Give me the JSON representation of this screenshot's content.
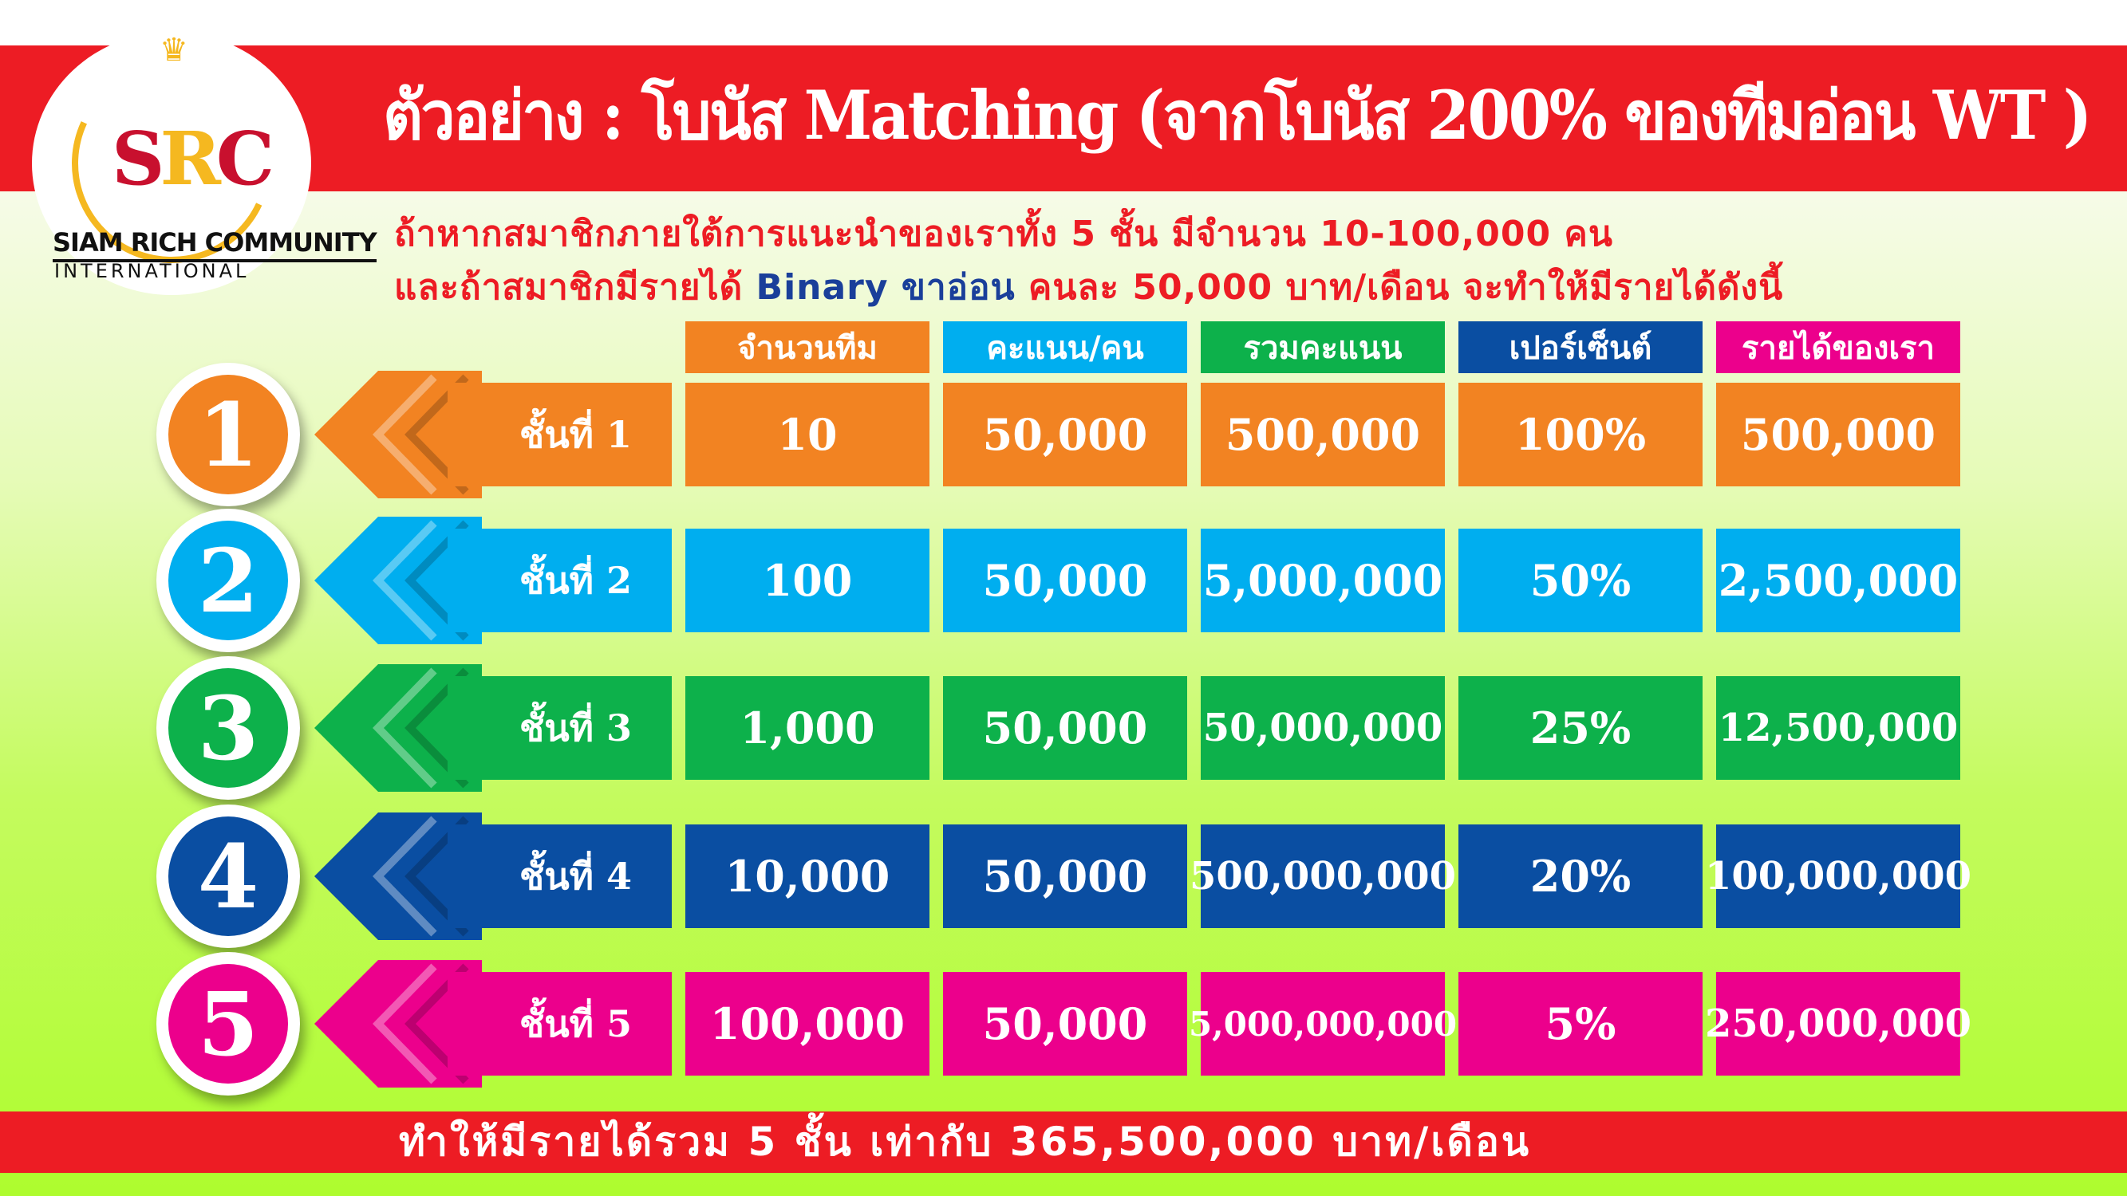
{
  "title": "ตัวอย่าง : โบนัส Matching (จากโบนัส 200% ของทีมอ่อน WT )",
  "logo": {
    "text": "SRC",
    "brand": "SIAM RICH COMMUNITY",
    "brand_sub": "INTERNATIONAL"
  },
  "subtitle1": "ถ้าหากสมาชิกภายใต้การแนะนำของเราทั้ง 5 ชั้น มีจำนวน 10-100,000 คน",
  "subtitle2": {
    "a": "และถ้าสมาชิกมีรายได้ ",
    "b": "Binary ขาอ่อน",
    "c": " คนละ 50,000 บาท/เดือน จะทำให้มีรายได้ดังนี้"
  },
  "headers": [
    "จำนวนทีม",
    "คะแนน/คน",
    "รวมคะแนน",
    "เปอร์เซ็นต์",
    "รายได้ของเรา"
  ],
  "rows": [
    {
      "num": "1",
      "label": "ชั้นที่ 1",
      "color": "#f28322",
      "values": [
        "10",
        "50,000",
        "500,000",
        "100%",
        "500,000"
      ]
    },
    {
      "num": "2",
      "label": "ชั้นที่ 2",
      "color": "#00aeef",
      "values": [
        "100",
        "50,000",
        "5,000,000",
        "50%",
        "2,500,000"
      ]
    },
    {
      "num": "3",
      "label": "ชั้นที่ 3",
      "color": "#0db14b",
      "values": [
        "1,000",
        "50,000",
        "50,000,000",
        "25%",
        "12,500,000"
      ]
    },
    {
      "num": "4",
      "label": "ชั้นที่ 4",
      "color": "#0a4ea2",
      "values": [
        "10,000",
        "50,000",
        "500,000,000",
        "20%",
        "100,000,000"
      ]
    },
    {
      "num": "5",
      "label": "ชั้นที่ 5",
      "color": "#ec008c",
      "values": [
        "100,000",
        "50,000",
        "5,000,000,000",
        "5%",
        "250,000,000"
      ]
    }
  ],
  "total": "ทำให้มีรายได้รวม 5 ชั้น เท่ากับ 365,500,000 บาท/เดือน",
  "colors": {
    "red": "#ed1c24",
    "gold": "#f5b820"
  }
}
